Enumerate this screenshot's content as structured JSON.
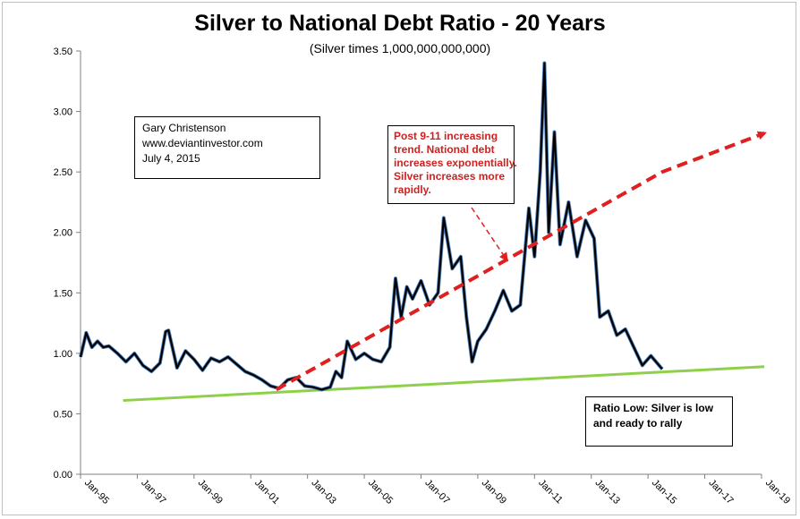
{
  "chart_data": {
    "type": "line",
    "title": "Silver to National Debt Ratio - 20 Years",
    "subtitle": "(Silver times 1,000,000,000,000)",
    "xlabel": "",
    "ylabel": "",
    "ylim": [
      0,
      3.5
    ],
    "yticks": [
      "0.00",
      "0.50",
      "1.00",
      "1.50",
      "2.00",
      "2.50",
      "3.00",
      "3.50"
    ],
    "xticks": [
      "Jan-95",
      "Jan-97",
      "Jan-99",
      "Jan-01",
      "Jan-03",
      "Jan-05",
      "Jan-07",
      "Jan-09",
      "Jan-11",
      "Jan-13",
      "Jan-15",
      "Jan-17",
      "Jan-19"
    ],
    "x_range_years": [
      1995,
      2019
    ],
    "grid": false,
    "series": [
      {
        "color": "#000000",
        "x": [
          1995.0,
          1995.2,
          1995.4,
          1995.6,
          1995.8,
          1996.0,
          1996.3,
          1996.6,
          1996.9,
          1997.2,
          1997.5,
          1997.8,
          1998.0,
          1998.1,
          1998.4,
          1998.7,
          1999.0,
          1999.3,
          1999.6,
          1999.9,
          2000.2,
          2000.5,
          2000.8,
          2001.1,
          2001.4,
          2001.7,
          2002.0,
          2002.3,
          2002.6,
          2002.9,
          2003.2,
          2003.5,
          2003.8,
          2004.0,
          2004.2,
          2004.4,
          2004.7,
          2005.0,
          2005.3,
          2005.6,
          2005.9,
          2006.1,
          2006.3,
          2006.5,
          2006.7,
          2007.0,
          2007.3,
          2007.6,
          2007.8,
          2008.1,
          2008.4,
          2008.6,
          2008.8,
          2009.0,
          2009.3,
          2009.6,
          2009.9,
          2010.2,
          2010.5,
          2010.8,
          2011.0,
          2011.2,
          2011.35,
          2011.5,
          2011.7,
          2011.9,
          2012.2,
          2012.5,
          2012.8,
          2013.1,
          2013.3,
          2013.6,
          2013.9,
          2014.2,
          2014.5,
          2014.8,
          2015.1,
          2015.5
        ],
        "values": [
          0.97,
          1.17,
          1.05,
          1.1,
          1.05,
          1.06,
          1.0,
          0.93,
          1.0,
          0.9,
          0.85,
          0.92,
          1.18,
          1.19,
          0.88,
          1.02,
          0.95,
          0.86,
          0.96,
          0.93,
          0.97,
          0.91,
          0.85,
          0.82,
          0.78,
          0.73,
          0.71,
          0.78,
          0.8,
          0.73,
          0.72,
          0.7,
          0.72,
          0.85,
          0.8,
          1.1,
          0.95,
          1.0,
          0.95,
          0.93,
          1.05,
          1.62,
          1.3,
          1.55,
          1.45,
          1.6,
          1.4,
          1.5,
          2.12,
          1.7,
          1.8,
          1.3,
          0.93,
          1.1,
          1.2,
          1.35,
          1.52,
          1.35,
          1.4,
          2.2,
          1.8,
          2.5,
          3.4,
          2.0,
          2.83,
          1.9,
          2.25,
          1.8,
          2.1,
          1.95,
          1.3,
          1.35,
          1.15,
          1.2,
          1.05,
          0.9,
          0.98,
          0.87
        ]
      },
      {
        "name": "trend",
        "color": "#e02020",
        "style": "dashed",
        "x": [
          2001.9,
          2015.5,
          2019.1
        ],
        "values": [
          0.7,
          2.5,
          2.82
        ]
      },
      {
        "name": "support",
        "color": "#8ed04a",
        "x": [
          1996.5,
          2019.1
        ],
        "values": [
          0.61,
          0.89
        ]
      }
    ],
    "annotations": {
      "author": [
        "Gary Christenson",
        "www.deviantinvestor.com",
        "July 4, 2015"
      ],
      "post911": [
        "Post 9-11 increasing",
        "trend.  National debt",
        "increases exponentially.",
        "Silver increases more",
        "rapidly."
      ],
      "ratio_low": [
        "Ratio Low: Silver  is low",
        "and ready to rally"
      ]
    }
  }
}
